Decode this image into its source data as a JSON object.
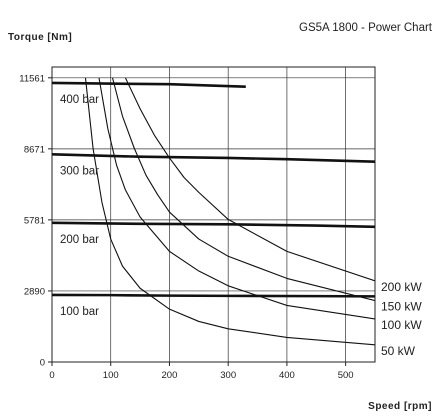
{
  "chart_data": {
    "type": "line",
    "title": "GS5A 1800 - Power Chart",
    "ylabel": "Torque [Nm]",
    "xlabel": "Speed [rpm]",
    "xlim": [
      0,
      550
    ],
    "ylim": [
      0,
      12000
    ],
    "xticks": [
      0,
      100,
      200,
      300,
      400,
      500
    ],
    "yticks": [
      0,
      2890,
      5781,
      8671,
      11561
    ],
    "grid": true,
    "pressure_series": [
      {
        "name": "400 bar",
        "x": [
          0,
          200,
          330
        ],
        "y": [
          11350,
          11300,
          11200
        ]
      },
      {
        "name": "300 bar",
        "x": [
          0,
          150,
          300,
          400,
          550
        ],
        "y": [
          8450,
          8350,
          8300,
          8250,
          8150
        ]
      },
      {
        "name": "200 bar",
        "x": [
          0,
          150,
          300,
          450,
          550
        ],
        "y": [
          5660,
          5620,
          5600,
          5550,
          5500
        ]
      },
      {
        "name": "100 bar",
        "x": [
          0,
          100,
          200,
          300,
          450,
          550
        ],
        "y": [
          2730,
          2720,
          2700,
          2690,
          2680,
          2670
        ]
      }
    ],
    "power_series": [
      {
        "name": "50 kW",
        "x": [
          57,
          70,
          85,
          100,
          120,
          150,
          200,
          250,
          300,
          400,
          550
        ],
        "y": [
          11561,
          8671,
          6500,
          5000,
          3900,
          3000,
          2150,
          1650,
          1350,
          1000,
          700
        ]
      },
      {
        "name": "100 kW",
        "x": [
          80,
          95,
          110,
          125,
          150,
          200,
          250,
          300,
          400,
          550
        ],
        "y": [
          11561,
          9500,
          8000,
          7000,
          5900,
          4500,
          3700,
          3100,
          2300,
          1750
        ]
      },
      {
        "name": "150 kW",
        "x": [
          103,
          120,
          140,
          160,
          180,
          200,
          250,
          300,
          400,
          550
        ],
        "y": [
          11561,
          10000,
          8700,
          7600,
          6800,
          6100,
          5000,
          4300,
          3400,
          2500
        ]
      },
      {
        "name": "200 kW",
        "x": [
          125,
          150,
          175,
          200,
          225,
          250,
          300,
          400,
          550
        ],
        "y": [
          11561,
          10300,
          9200,
          8300,
          7500,
          6900,
          5800,
          4500,
          3300
        ]
      }
    ]
  }
}
